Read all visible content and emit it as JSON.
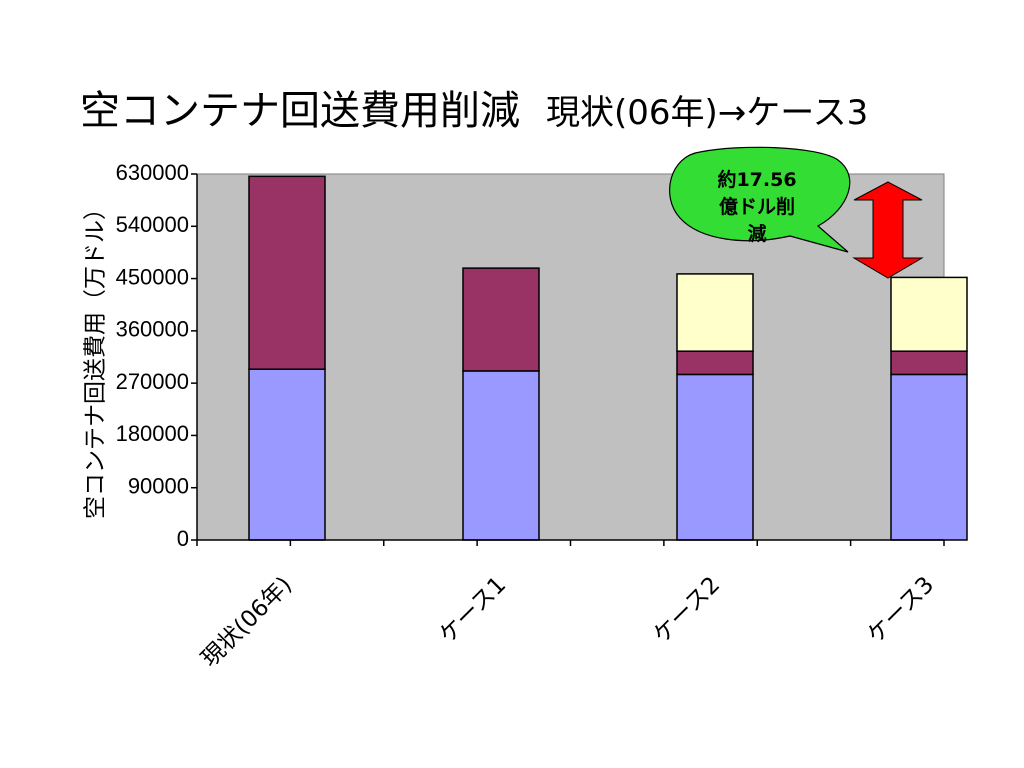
{
  "slide": {
    "title_main": "空コンテナ回送費用削減",
    "title_sub": "現状(06年)→ケース3"
  },
  "callout": {
    "lines": [
      "約17.56",
      "億ドル削",
      "減"
    ],
    "fill": "#33dd33"
  },
  "colors": {
    "plot_bg": "#c0c0c0",
    "series": [
      "#9999ff",
      "#993366",
      "#ffffcc"
    ],
    "arrow": "#ff0000"
  },
  "chart_data": {
    "type": "bar",
    "stacked": true,
    "title": "",
    "xlabel": "",
    "ylabel": "空コンテナ回送費用（万ドル）",
    "ylim": [
      0,
      630000
    ],
    "yticks": [
      "0",
      "90000",
      "180000",
      "270000",
      "360000",
      "450000",
      "540000",
      "630000"
    ],
    "ytick_values": [
      0,
      90000,
      180000,
      270000,
      360000,
      450000,
      540000,
      630000
    ],
    "categories": [
      "現状(06年)",
      "ケース1",
      "ケース2",
      "ケース3"
    ],
    "series": [
      {
        "values": [
          294000,
          291000,
          285000,
          285000
        ]
      },
      {
        "values": [
          332000,
          177000,
          40000,
          40000
        ]
      },
      {
        "values": [
          0,
          0,
          133000,
          127000
        ]
      }
    ],
    "grid": false,
    "legend": "none"
  }
}
